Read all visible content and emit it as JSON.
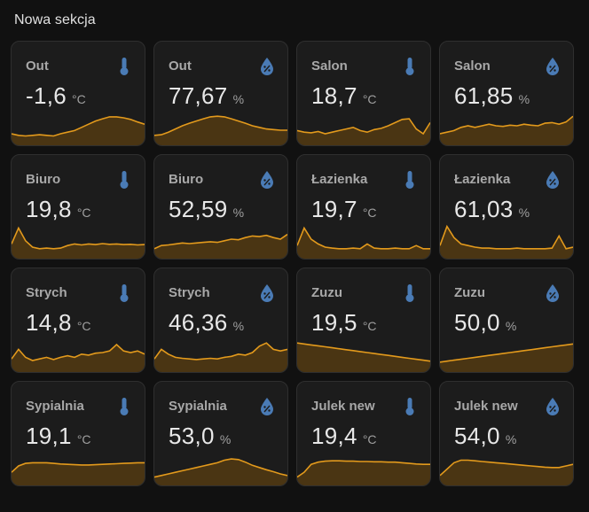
{
  "section": {
    "title": "Nowa sekcja"
  },
  "colors": {
    "line": "#e39a1c",
    "fill": "#5a3d10",
    "icon": "#4a7bb5"
  },
  "cards": [
    {
      "name": "Out",
      "value": "-1,6",
      "unit": "°C",
      "icon": "thermometer-icon",
      "trend": [
        0.25,
        0.2,
        0.18,
        0.2,
        0.22,
        0.2,
        0.18,
        0.25,
        0.3,
        0.35,
        0.45,
        0.55,
        0.65,
        0.72,
        0.78,
        0.78,
        0.75,
        0.7,
        0.62,
        0.55
      ]
    },
    {
      "name": "Out",
      "value": "77,67",
      "unit": "%",
      "icon": "humidity-icon",
      "trend": [
        0.2,
        0.22,
        0.3,
        0.4,
        0.5,
        0.58,
        0.65,
        0.72,
        0.78,
        0.8,
        0.78,
        0.72,
        0.65,
        0.58,
        0.5,
        0.45,
        0.4,
        0.38,
        0.36,
        0.36
      ]
    },
    {
      "name": "Salon",
      "value": "18,7",
      "unit": "°C",
      "icon": "thermometer-icon",
      "trend": [
        0.35,
        0.3,
        0.28,
        0.32,
        0.25,
        0.3,
        0.35,
        0.4,
        0.45,
        0.35,
        0.3,
        0.38,
        0.42,
        0.5,
        0.6,
        0.7,
        0.72,
        0.4,
        0.25,
        0.6
      ]
    },
    {
      "name": "Salon",
      "value": "61,85",
      "unit": "%",
      "icon": "humidity-icon",
      "trend": [
        0.25,
        0.3,
        0.35,
        0.45,
        0.5,
        0.45,
        0.5,
        0.55,
        0.5,
        0.48,
        0.52,
        0.5,
        0.55,
        0.52,
        0.5,
        0.58,
        0.6,
        0.55,
        0.62,
        0.8
      ]
    },
    {
      "name": "Biuro",
      "value": "19,8",
      "unit": "°C",
      "icon": "thermometer-icon",
      "trend": [
        0.35,
        0.85,
        0.45,
        0.25,
        0.2,
        0.22,
        0.2,
        0.22,
        0.3,
        0.35,
        0.32,
        0.35,
        0.33,
        0.36,
        0.34,
        0.35,
        0.33,
        0.34,
        0.32,
        0.33
      ]
    },
    {
      "name": "Biuro",
      "value": "52,59",
      "unit": "%",
      "icon": "humidity-icon",
      "trend": [
        0.2,
        0.3,
        0.32,
        0.35,
        0.38,
        0.36,
        0.38,
        0.4,
        0.42,
        0.4,
        0.45,
        0.5,
        0.48,
        0.55,
        0.6,
        0.58,
        0.62,
        0.55,
        0.5,
        0.65
      ]
    },
    {
      "name": "Łazienka",
      "value": "19,7",
      "unit": "°C",
      "icon": "thermometer-icon",
      "trend": [
        0.3,
        0.85,
        0.5,
        0.35,
        0.25,
        0.22,
        0.2,
        0.2,
        0.22,
        0.2,
        0.35,
        0.22,
        0.2,
        0.2,
        0.22,
        0.2,
        0.2,
        0.3,
        0.2,
        0.2
      ]
    },
    {
      "name": "Łazienka",
      "value": "61,03",
      "unit": "%",
      "icon": "humidity-icon",
      "trend": [
        0.3,
        0.9,
        0.55,
        0.35,
        0.3,
        0.25,
        0.22,
        0.22,
        0.2,
        0.2,
        0.2,
        0.22,
        0.2,
        0.2,
        0.2,
        0.2,
        0.22,
        0.6,
        0.2,
        0.25
      ]
    },
    {
      "name": "Strych",
      "value": "14,8",
      "unit": "°C",
      "icon": "thermometer-icon",
      "trend": [
        0.3,
        0.6,
        0.35,
        0.25,
        0.3,
        0.35,
        0.28,
        0.35,
        0.4,
        0.35,
        0.45,
        0.42,
        0.48,
        0.5,
        0.55,
        0.75,
        0.55,
        0.5,
        0.55,
        0.45
      ]
    },
    {
      "name": "Strych",
      "value": "46,36",
      "unit": "%",
      "icon": "humidity-icon",
      "trend": [
        0.3,
        0.6,
        0.45,
        0.35,
        0.32,
        0.3,
        0.28,
        0.3,
        0.32,
        0.3,
        0.35,
        0.38,
        0.45,
        0.42,
        0.5,
        0.7,
        0.8,
        0.6,
        0.55,
        0.6
      ]
    },
    {
      "name": "Zuzu",
      "value": "19,5",
      "unit": "°C",
      "icon": "thermometer-icon",
      "trend": [
        0.8,
        0.77,
        0.74,
        0.71,
        0.68,
        0.65,
        0.62,
        0.59,
        0.56,
        0.53,
        0.5,
        0.47,
        0.44,
        0.41,
        0.38,
        0.35,
        0.32,
        0.29,
        0.26,
        0.23
      ]
    },
    {
      "name": "Zuzu",
      "value": "50,0",
      "unit": "%",
      "icon": "humidity-icon",
      "trend": [
        0.2,
        0.23,
        0.26,
        0.29,
        0.32,
        0.35,
        0.38,
        0.41,
        0.44,
        0.47,
        0.5,
        0.53,
        0.56,
        0.59,
        0.62,
        0.65,
        0.68,
        0.71,
        0.74,
        0.77
      ]
    },
    {
      "name": "Sypialnia",
      "value": "19,1",
      "unit": "°C",
      "icon": "thermometer-icon",
      "trend": [
        0.3,
        0.5,
        0.58,
        0.6,
        0.6,
        0.6,
        0.58,
        0.56,
        0.55,
        0.54,
        0.53,
        0.53,
        0.54,
        0.55,
        0.56,
        0.57,
        0.58,
        0.59,
        0.6,
        0.6
      ]
    },
    {
      "name": "Sypialnia",
      "value": "53,0",
      "unit": "%",
      "icon": "humidity-icon",
      "trend": [
        0.15,
        0.2,
        0.25,
        0.3,
        0.35,
        0.4,
        0.45,
        0.5,
        0.55,
        0.6,
        0.68,
        0.72,
        0.7,
        0.62,
        0.52,
        0.45,
        0.38,
        0.32,
        0.25,
        0.2
      ]
    },
    {
      "name": "Julek new",
      "value": "19,4",
      "unit": "°C",
      "icon": "thermometer-icon",
      "trend": [
        0.15,
        0.3,
        0.55,
        0.62,
        0.65,
        0.66,
        0.66,
        0.65,
        0.65,
        0.64,
        0.64,
        0.63,
        0.63,
        0.62,
        0.62,
        0.6,
        0.58,
        0.56,
        0.55,
        0.55
      ]
    },
    {
      "name": "Julek new",
      "value": "54,0",
      "unit": "%",
      "icon": "humidity-icon",
      "trend": [
        0.2,
        0.4,
        0.6,
        0.68,
        0.68,
        0.66,
        0.64,
        0.62,
        0.6,
        0.58,
        0.56,
        0.54,
        0.52,
        0.5,
        0.48,
        0.46,
        0.45,
        0.45,
        0.5,
        0.55
      ]
    }
  ]
}
